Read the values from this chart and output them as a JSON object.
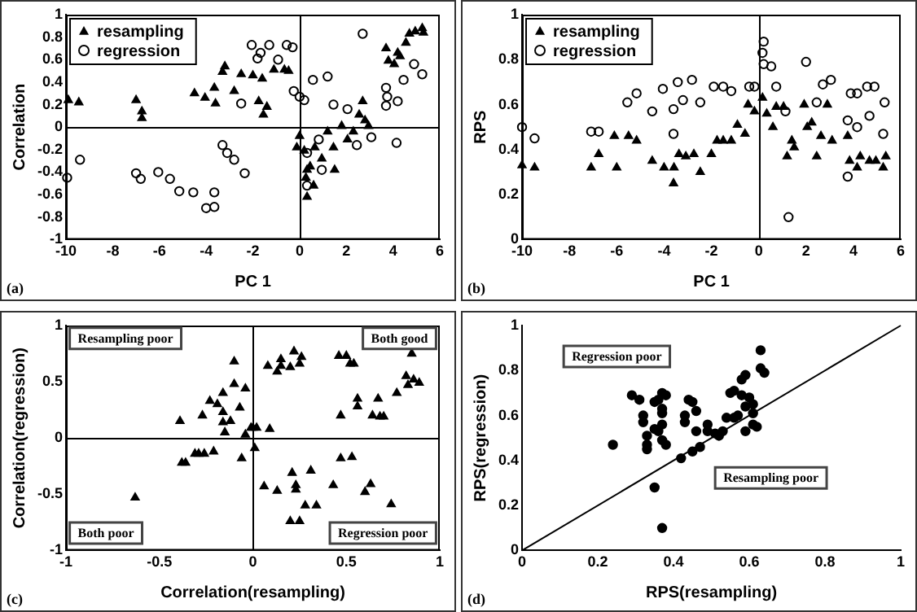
{
  "chart_data": [
    {
      "type": "scatter",
      "xlabel": "PC 1",
      "ylabel": "Correlation",
      "xlim": [
        -10,
        6
      ],
      "ylim": [
        -1,
        1
      ],
      "xticks": [
        -10,
        -8,
        -6,
        -4,
        -2,
        0,
        2,
        4,
        6
      ],
      "yticks": [
        -1,
        -0.8,
        -0.6,
        -0.4,
        -0.2,
        0,
        0.2,
        0.4,
        0.6,
        0.8,
        1
      ],
      "grid": false,
      "ref_lines": [
        {
          "axis": "x",
          "value": 0,
          "color": "#000000"
        },
        {
          "axis": "y",
          "value": 0,
          "color": "#000000"
        }
      ],
      "legend": "top left",
      "annotations": [
        "(a)"
      ],
      "series": [
        {
          "name": "resampling",
          "color": "#000000",
          "marker": "triangle",
          "x": [
            -9.9,
            -9.45,
            -7.0,
            -6.75,
            -6.75,
            -4.5,
            -4.05,
            -3.65,
            -3.6,
            -3.3,
            -3.2,
            -2.8,
            -2.5,
            -2.0,
            -1.6,
            -1.75,
            -1.55,
            -1.4,
            -1.1,
            -0.65,
            -0.47,
            0,
            -0.12,
            0.2,
            0.32,
            0.27,
            0.45,
            0.6,
            0.32,
            0.65,
            0.95,
            1.2,
            1.45,
            1.5,
            1.8,
            2.05,
            2.3,
            2.55,
            2.7,
            2.8,
            2.95,
            3.7,
            3.8,
            4.05,
            4.2,
            4.3,
            4.55,
            4.7,
            4.95,
            5.25,
            5.3
          ],
          "values": [
            0.24,
            0.22,
            0.24,
            0.14,
            0.08,
            0.3,
            0.26,
            0.35,
            0.21,
            0.49,
            0.54,
            0.32,
            0.47,
            0.46,
            0.43,
            0.23,
            0.11,
            0.18,
            0.51,
            0.51,
            0.5,
            -0.08,
            -0.18,
            -0.21,
            -0.38,
            -0.45,
            -0.35,
            -0.52,
            -0.62,
            -0.18,
            -0.28,
            -0.04,
            -0.18,
            -0.38,
            0.01,
            -0.11,
            -0.04,
            0.11,
            0.23,
            0.06,
            0.01,
            0.7,
            0.59,
            0.56,
            0.66,
            0.63,
            0.75,
            0.83,
            0.85,
            0.88,
            0.84
          ]
        },
        {
          "name": "regression",
          "color": "#000000",
          "marker": "circle",
          "x": [
            -9.95,
            -9.4,
            -7.0,
            -6.8,
            -6.05,
            -5.55,
            -5.15,
            -4.55,
            -4.0,
            -3.65,
            -3.65,
            -3.3,
            -3.1,
            -2.8,
            -2.35,
            -2.5,
            -2.05,
            -1.67,
            -1.8,
            -1.3,
            -0.92,
            -0.55,
            -0.3,
            -0.25,
            0,
            0.2,
            0.57,
            1.2,
            1.45,
            2.05,
            2.7,
            2.45,
            3.07,
            3.7,
            3.75,
            3.7,
            4.2,
            4.45,
            4.9,
            5.25,
            4.15,
            0.95,
            0.32,
            0.82,
            0.32
          ],
          "values": [
            -0.45,
            -0.29,
            -0.41,
            -0.46,
            -0.4,
            -0.46,
            -0.57,
            -0.58,
            -0.72,
            -0.71,
            -0.58,
            -0.16,
            -0.23,
            -0.29,
            -0.41,
            0.21,
            0.73,
            0.66,
            0.61,
            0.73,
            0.6,
            0.73,
            0.71,
            0.32,
            0.27,
            0.24,
            0.42,
            0.45,
            0.2,
            0.16,
            0.83,
            -0.16,
            -0.09,
            0.35,
            0.27,
            0.19,
            0.23,
            0.42,
            0.56,
            0.47,
            -0.14,
            -0.38,
            -0.52,
            -0.11,
            -0.23
          ]
        }
      ]
    },
    {
      "type": "scatter",
      "xlabel": "PC 1",
      "ylabel": "RPS",
      "xlim": [
        -10,
        6
      ],
      "ylim": [
        0,
        1
      ],
      "xticks": [
        -10,
        -8,
        -6,
        -4,
        -2,
        0,
        2,
        4,
        6
      ],
      "yticks": [
        0,
        0.2,
        0.4,
        0.6,
        0.8,
        1
      ],
      "grid": false,
      "ref_lines": [
        {
          "axis": "x",
          "value": 0,
          "color": "#000000"
        }
      ],
      "legend": "top left",
      "annotations": [
        "(b)"
      ],
      "series": [
        {
          "name": "resampling",
          "color": "#000000",
          "marker": "triangle",
          "x": [
            -10,
            -9.47,
            -7.08,
            -6.76,
            -6.0,
            -6.1,
            -5.5,
            -5.16,
            -4.5,
            -4.0,
            -3.6,
            -3.58,
            -3.37,
            -3.08,
            -2.74,
            -2.47,
            -2.0,
            -1.76,
            -1.5,
            -1.16,
            -0.9,
            -0.58,
            -0.45,
            -0.18,
            0.16,
            0.34,
            0.74,
            1.05,
            0.6,
            1.2,
            1.4,
            1.5,
            1.92,
            2.05,
            2.24,
            2.45,
            2.63,
            2.9,
            3.1,
            3.76,
            3.84,
            4.16,
            4.29,
            4.68,
            4.95,
            5.26,
            5.37
          ],
          "values": [
            0.33,
            0.32,
            0.32,
            0.38,
            0.32,
            0.46,
            0.46,
            0.44,
            0.35,
            0.32,
            0.25,
            0.32,
            0.38,
            0.37,
            0.38,
            0.3,
            0.38,
            0.44,
            0.44,
            0.44,
            0.51,
            0.47,
            0.6,
            0.57,
            0.63,
            0.56,
            0.59,
            0.59,
            0.5,
            0.37,
            0.44,
            0.41,
            0.6,
            0.5,
            0.52,
            0.37,
            0.46,
            0.6,
            0.44,
            0.46,
            0.35,
            0.32,
            0.37,
            0.35,
            0.35,
            0.32,
            0.37
          ]
        },
        {
          "name": "regression",
          "color": "#000000",
          "marker": "circle",
          "x": [
            -10,
            -9.47,
            -7.08,
            -6.76,
            -5.55,
            -5.16,
            -4.5,
            -4.05,
            -3.6,
            -3.42,
            -3.2,
            -2.82,
            -2.47,
            -3.6,
            -1.9,
            -1.5,
            -1.16,
            -0.4,
            -0.18,
            0.21,
            0.16,
            0.21,
            0.53,
            0.74,
            1.13,
            1.26,
            2.0,
            2.45,
            2.71,
            3.05,
            3.89,
            4.16,
            4.58,
            4.89,
            5.32,
            3.76,
            4.68,
            3.76,
            4.16,
            5.26
          ],
          "values": [
            0.5,
            0.45,
            0.48,
            0.48,
            0.61,
            0.65,
            0.57,
            0.67,
            0.58,
            0.7,
            0.62,
            0.71,
            0.61,
            0.47,
            0.68,
            0.68,
            0.66,
            0.68,
            0.68,
            0.88,
            0.83,
            0.78,
            0.77,
            0.68,
            0.57,
            0.1,
            0.79,
            0.61,
            0.69,
            0.71,
            0.65,
            0.65,
            0.68,
            0.68,
            0.61,
            0.53,
            0.55,
            0.28,
            0.5,
            0.47
          ]
        }
      ]
    },
    {
      "type": "scatter",
      "xlabel": "Correlation(resampling)",
      "ylabel": "Correlation(regression)",
      "xlim": [
        -1,
        1
      ],
      "ylim": [
        -1,
        1
      ],
      "xticks": [
        -1,
        -0.5,
        0,
        0.5,
        1
      ],
      "yticks": [
        -1,
        -0.5,
        0,
        0.5,
        1
      ],
      "grid": false,
      "ref_lines": [
        {
          "axis": "x",
          "value": 0,
          "color": "#000000"
        },
        {
          "axis": "y",
          "value": 0,
          "color": "#000000"
        }
      ],
      "annotations": [
        "Resampling poor",
        "Both good",
        "Both poor",
        "Regression poor",
        "(c)"
      ],
      "series": [
        {
          "color": "#000000",
          "marker": "triangle",
          "x": [
            -0.63,
            -0.39,
            -0.38,
            -0.36,
            -0.31,
            -0.29,
            -0.26,
            -0.27,
            -0.23,
            -0.21,
            -0.19,
            -0.16,
            -0.16,
            -0.15,
            -0.16,
            -0.12,
            -0.1,
            -0.1,
            -0.07,
            -0.06,
            -0.04,
            -0.04,
            -0.01,
            0,
            0.02,
            0.01,
            0.09,
            0.06,
            0.08,
            0.13,
            0.15,
            0.13,
            0.15,
            0.2,
            0.21,
            0.22,
            0.23,
            0.23,
            0.25,
            0.26,
            0.28,
            0.31,
            0.2,
            0.25,
            0.34,
            0.43,
            0.46,
            0.47,
            0.47,
            0.5,
            0.52,
            0.53,
            0.54,
            0.56,
            0.56,
            0.6,
            0.63,
            0.64,
            0.67,
            0.68,
            0.7,
            0.74,
            0.77,
            0.82,
            0.83,
            0.86,
            0.89,
            0.85
          ],
          "values": [
            -0.53,
            0.15,
            -0.22,
            -0.22,
            -0.14,
            -0.14,
            -0.14,
            0.2,
            0.33,
            -0.12,
            0.3,
            0.23,
            0.14,
            0.05,
            0.4,
            0.15,
            0.68,
            0.48,
            0.27,
            -0.18,
            0.44,
            0.03,
            0.09,
            0.09,
            0.09,
            -0.09,
            0.08,
            -0.43,
            0.64,
            -0.47,
            0.64,
            0.59,
            0.7,
            0.63,
            -0.31,
            0.77,
            -0.42,
            -0.46,
            0.66,
            0.72,
            -0.6,
            -0.29,
            -0.74,
            -0.74,
            -0.6,
            -0.42,
            0.73,
            -0.18,
            0.2,
            0.73,
            0.66,
            -0.17,
            0.66,
            0.35,
            0.28,
            -0.48,
            -0.41,
            0.2,
            0.35,
            0.19,
            0.19,
            -0.59,
            0.4,
            0.55,
            0.47,
            0.52,
            0.49,
            0.75
          ]
        }
      ]
    },
    {
      "type": "scatter",
      "xlabel": "RPS(resampling)",
      "ylabel": "RPS(regression)",
      "xlim": [
        0,
        1
      ],
      "ylim": [
        0,
        1
      ],
      "xticks": [
        0,
        0.2,
        0.4,
        0.6,
        0.8,
        1
      ],
      "yticks": [
        0,
        0.2,
        0.4,
        0.6,
        0.8,
        1
      ],
      "grid": false,
      "annotations": [
        "Regression poor",
        "Resampling poor",
        "(d)"
      ],
      "series": [
        {
          "color": "#000000",
          "marker": "circle",
          "x": [
            0.24,
            0.29,
            0.31,
            0.32,
            0.32,
            0.33,
            0.33,
            0.33,
            0.35,
            0.36,
            0.35,
            0.36,
            0.37,
            0.37,
            0.37,
            0.37,
            0.38,
            0.37,
            0.38,
            0.35,
            0.37,
            0.42,
            0.43,
            0.43,
            0.44,
            0.45,
            0.45,
            0.46,
            0.46,
            0.47,
            0.49,
            0.49,
            0.51,
            0.52,
            0.53,
            0.54,
            0.56,
            0.55,
            0.56,
            0.58,
            0.58,
            0.59,
            0.59,
            0.6,
            0.59,
            0.61,
            0.61,
            0.61,
            0.62,
            0.63,
            0.63,
            0.64,
            0.57
          ],
          "values": [
            0.47,
            0.69,
            0.67,
            0.6,
            0.57,
            0.51,
            0.47,
            0.45,
            0.54,
            0.53,
            0.66,
            0.67,
            0.56,
            0.63,
            0.61,
            0.7,
            0.69,
            0.49,
            0.47,
            0.28,
            0.1,
            0.41,
            0.6,
            0.57,
            0.67,
            0.66,
            0.44,
            0.62,
            0.53,
            0.46,
            0.56,
            0.53,
            0.52,
            0.51,
            0.53,
            0.59,
            0.59,
            0.7,
            0.71,
            0.69,
            0.76,
            0.53,
            0.64,
            0.68,
            0.78,
            0.61,
            0.56,
            0.65,
            0.55,
            0.89,
            0.81,
            0.79,
            0.6
          ]
        },
        {
          "type": "line",
          "color": "#000000",
          "marker": "none",
          "x": [
            0,
            1
          ],
          "values": [
            0,
            1
          ]
        }
      ]
    }
  ]
}
